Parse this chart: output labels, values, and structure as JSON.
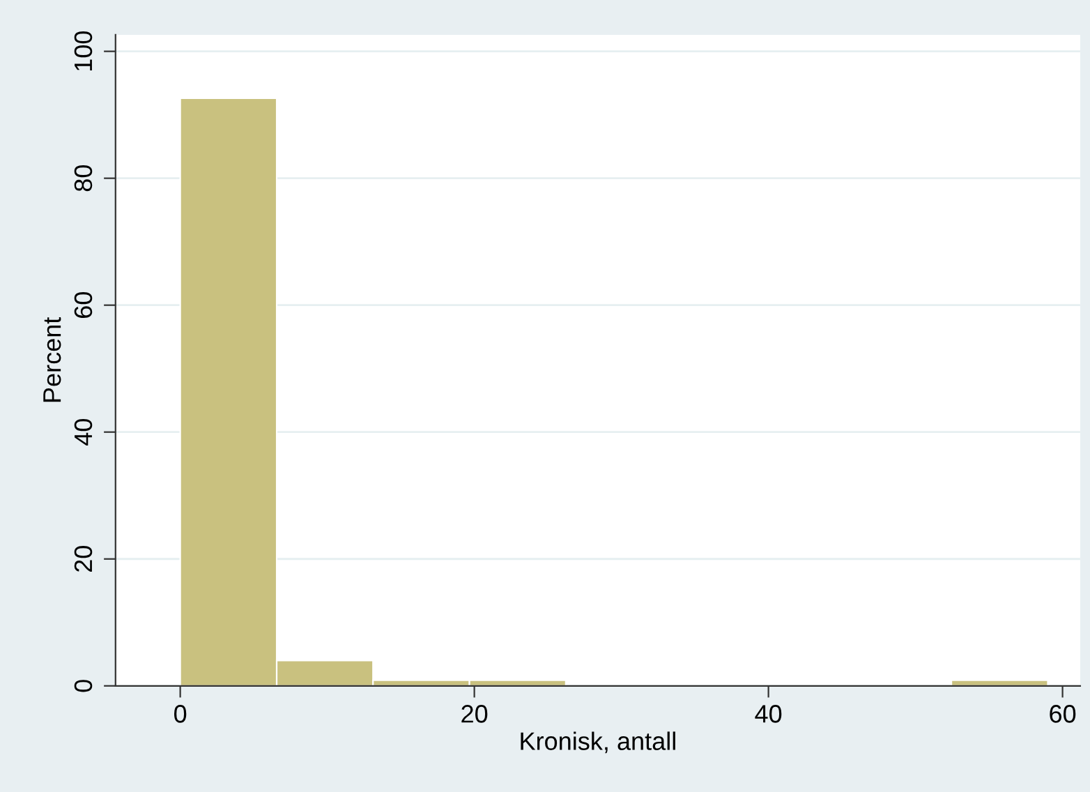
{
  "chart_data": {
    "type": "histogram",
    "xlabel": "Kronisk, antall",
    "ylabel": "Percent",
    "bins": [
      0,
      6.56,
      13.11,
      19.67,
      26.22,
      32.78,
      39.33,
      45.89,
      52.44,
      59
    ],
    "values": [
      92.6,
      4,
      0.9,
      0.9,
      0,
      0,
      0,
      0,
      0.9
    ],
    "color": "#c9c17f",
    "xlim": [
      -4.4,
      61.2
    ],
    "xticks": [
      0,
      20,
      40,
      60
    ],
    "ylim": [
      0,
      102.6
    ],
    "yticks": [
      0,
      20,
      40,
      60,
      80,
      100
    ],
    "grid": "y"
  }
}
